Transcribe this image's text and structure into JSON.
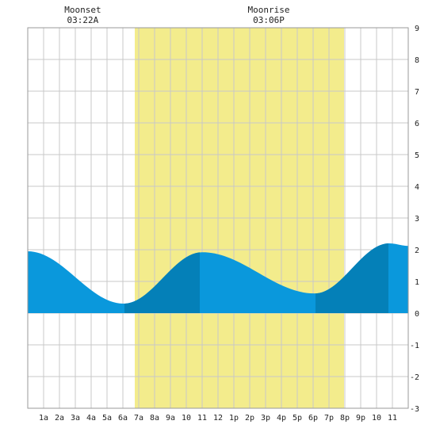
{
  "annotations": [
    {
      "label": "Moonset",
      "time": "03:22A",
      "hour": 3.37
    },
    {
      "label": "Moonrise",
      "time": "03:06P",
      "hour": 15.1
    }
  ],
  "colors": {
    "daylight": "#f3ec8c",
    "tide": "#0a98dc",
    "tide_dark": "#0480b8",
    "grid": "#c8c8c8",
    "border": "#999999"
  },
  "chart_data": {
    "type": "area",
    "title": "",
    "xlabel": "",
    "ylabel": "",
    "xlim": [
      0,
      24
    ],
    "ylim": [
      -3,
      9
    ],
    "grid": true,
    "x_tick_labels": [
      "1a",
      "2a",
      "3a",
      "4a",
      "5a",
      "6a",
      "7a",
      "8a",
      "9a",
      "10",
      "11",
      "12",
      "1p",
      "2p",
      "3p",
      "4p",
      "5p",
      "6p",
      "7p",
      "8p",
      "9p",
      "10",
      "11"
    ],
    "y_tick_labels": [
      "-3",
      "-2",
      "-1",
      "0",
      "1",
      "2",
      "3",
      "4",
      "5",
      "6",
      "7",
      "8",
      "9"
    ],
    "daylight": {
      "start": 6.75,
      "end": 19.95
    },
    "tide_extremes": [
      {
        "hour": 0.0,
        "height": 1.95
      },
      {
        "hour": 6.05,
        "height": 0.3
      },
      {
        "hour": 11.0,
        "height": 1.92
      },
      {
        "hour": 18.1,
        "height": 0.62
      },
      {
        "hour": 22.8,
        "height": 2.2
      },
      {
        "hour": 24.0,
        "height": 2.12
      }
    ],
    "dark_bands": [
      {
        "start": 6.1,
        "end": 10.85
      },
      {
        "start": 18.15,
        "end": 22.75
      }
    ]
  }
}
